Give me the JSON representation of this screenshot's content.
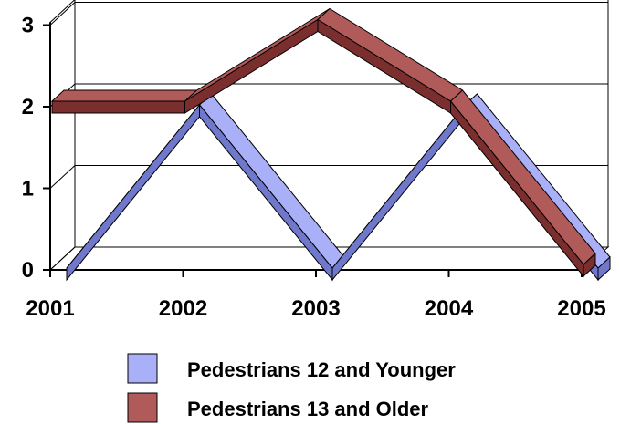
{
  "chart_data": {
    "type": "line",
    "style": "3d-ribbon",
    "categories": [
      "2001",
      "2002",
      "2003",
      "2004",
      "2005"
    ],
    "series": [
      {
        "name": "Pedestrians 12 and Younger",
        "values": [
          0,
          2,
          0,
          2,
          0
        ],
        "color": "#aab0f8",
        "side_color": "#7078cc"
      },
      {
        "name": "Pedestrians 13 and Older",
        "values": [
          2,
          2,
          3,
          2,
          0
        ],
        "color": "#b15a5a",
        "side_color": "#7a2e2e"
      }
    ],
    "y_ticks": [
      "0",
      "1",
      "2",
      "3"
    ],
    "ylim": [
      0,
      3
    ],
    "grid": true,
    "legend_position": "bottom",
    "title": "",
    "xlabel": "",
    "ylabel": ""
  }
}
